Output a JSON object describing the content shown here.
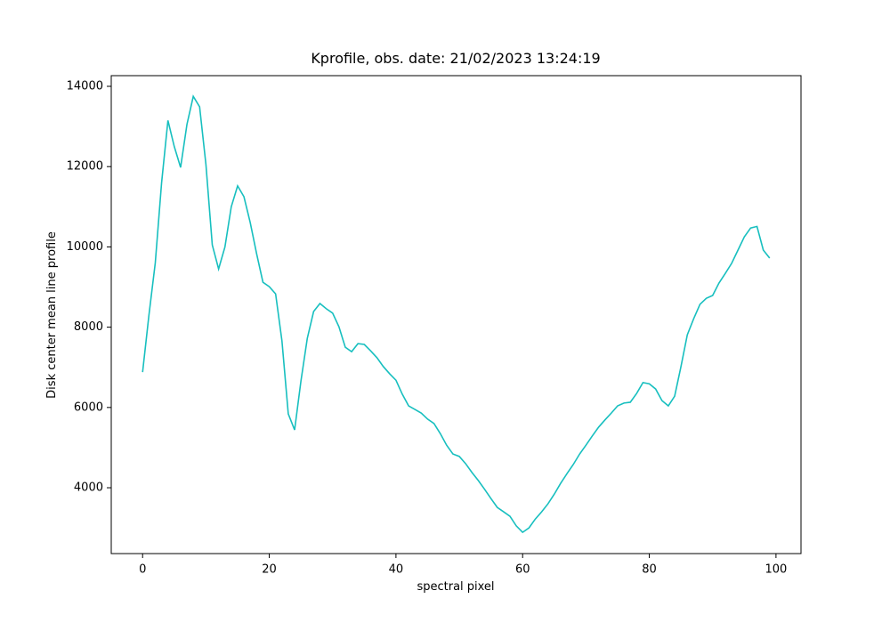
{
  "chart_data": {
    "type": "line",
    "title": "Kprofile, obs. date: 21/02/2023 13:24:19",
    "x_label": "spectral pixel",
    "y_label": "Disk center mean line profile",
    "x": [
      0,
      1,
      2,
      3,
      4,
      5,
      6,
      7,
      8,
      9,
      10,
      11,
      12,
      13,
      14,
      15,
      16,
      17,
      18,
      19,
      20,
      21,
      22,
      23,
      24,
      25,
      26,
      27,
      28,
      29,
      30,
      31,
      32,
      33,
      34,
      35,
      36,
      37,
      38,
      39,
      40,
      41,
      42,
      43,
      44,
      45,
      46,
      47,
      48,
      49,
      50,
      51,
      52,
      53,
      54,
      55,
      56,
      57,
      58,
      59,
      60,
      61,
      62,
      63,
      64,
      65,
      66,
      67,
      68,
      69,
      70,
      71,
      72,
      73,
      74,
      75,
      76,
      77,
      78,
      79,
      80,
      81,
      82,
      83,
      84,
      85,
      86,
      87,
      88,
      89,
      90,
      91,
      92,
      93,
      94,
      95,
      96,
      97,
      98,
      99
    ],
    "series": [
      {
        "name": "Kprofile",
        "color": "#17bfbf",
        "values": [
          6880,
          8300,
          9600,
          11600,
          13150,
          12500,
          11980,
          13050,
          13750,
          13490,
          12050,
          10050,
          9450,
          10000,
          11000,
          11520,
          11250,
          10600,
          9830,
          9120,
          9010,
          8830,
          7660,
          5840,
          5440,
          6660,
          7720,
          8390,
          8590,
          8460,
          8350,
          8010,
          7500,
          7390,
          7590,
          7570,
          7410,
          7240,
          7020,
          6840,
          6680,
          6330,
          6040,
          5950,
          5860,
          5710,
          5600,
          5350,
          5060,
          4840,
          4780,
          4600,
          4380,
          4180,
          3960,
          3730,
          3510,
          3400,
          3290,
          3050,
          2890,
          3000,
          3220,
          3400,
          3600,
          3840,
          4110,
          4350,
          4580,
          4840,
          5060,
          5290,
          5510,
          5690,
          5860,
          6040,
          6110,
          6130,
          6350,
          6620,
          6590,
          6460,
          6170,
          6040,
          6280,
          7020,
          7810,
          8210,
          8570,
          8720,
          8790,
          9100,
          9340,
          9590,
          9920,
          10250,
          10470,
          10510,
          9920,
          9720
        ]
      }
    ],
    "xlim": [
      -4.95,
      103.95
    ],
    "ylim": [
      2360,
      14266
    ],
    "xticks": [
      0,
      20,
      40,
      60,
      80,
      100
    ],
    "yticks": [
      4000,
      6000,
      8000,
      10000,
      12000,
      14000
    ]
  }
}
